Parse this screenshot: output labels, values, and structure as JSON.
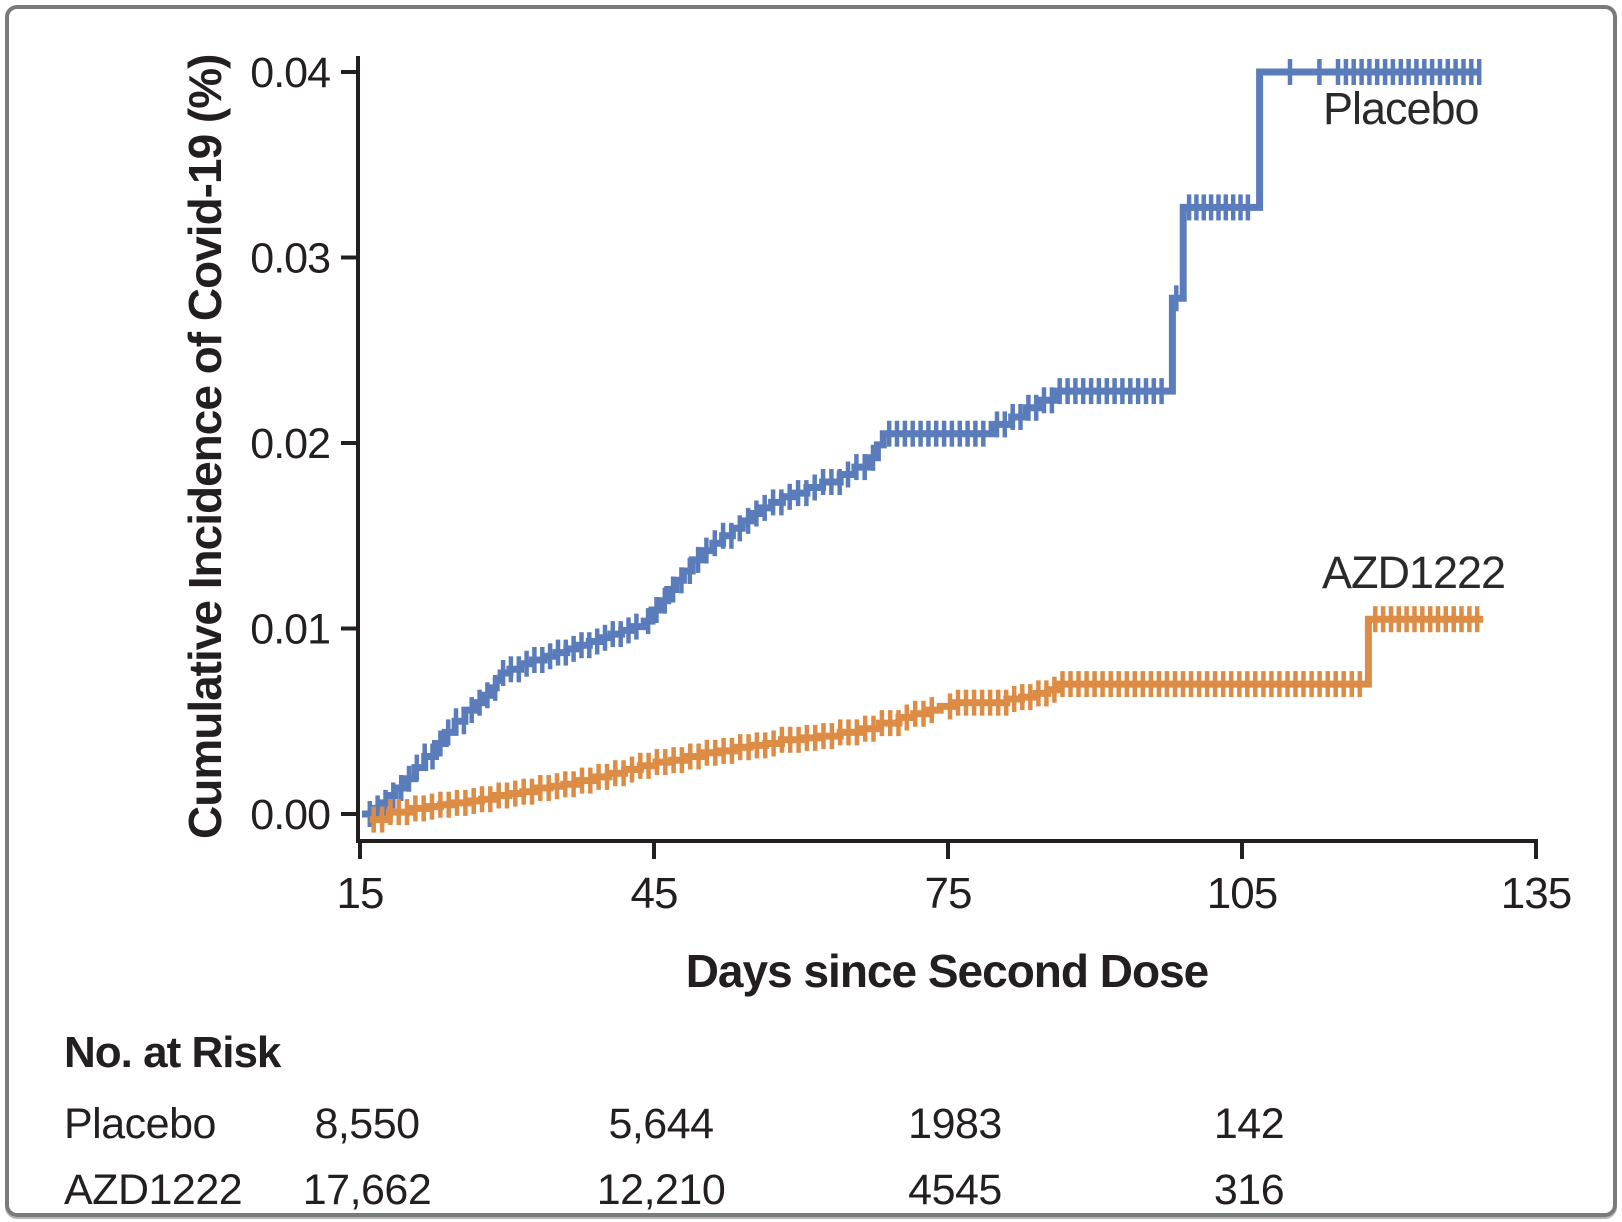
{
  "figure": {
    "background": "#ffffff",
    "border_color": "#787a7c",
    "ink_color": "#231f20"
  },
  "chart_data": {
    "type": "line",
    "subtype": "kaplan-meier-cumulative-incidence-steps",
    "title": "",
    "xlabel": "Days since Second Dose",
    "ylabel": "Cumulative Incidence of Covid-19 (%)",
    "xlim": [
      15,
      135
    ],
    "ylim": [
      0,
      0.04
    ],
    "x_ticks": [
      {
        "value": 15,
        "label": "15"
      },
      {
        "value": 45,
        "label": "45"
      },
      {
        "value": 75,
        "label": "75"
      },
      {
        "value": 105,
        "label": "105"
      },
      {
        "value": 135,
        "label": "135"
      }
    ],
    "y_ticks": [
      {
        "value": 0.04,
        "label": "0.04"
      },
      {
        "value": 0.03,
        "label": "0.03"
      },
      {
        "value": 0.02,
        "label": "0.02"
      },
      {
        "value": 0.01,
        "label": "0.01"
      },
      {
        "value": 0.0,
        "label": "0.00"
      }
    ],
    "grid": false,
    "legend_position": "inline-labels",
    "series": [
      {
        "name": "Placebo",
        "color": "#5b7cbb",
        "label_anchor": {
          "day": 121.2,
          "pct": 0.038
        },
        "end_day": 129.4,
        "steps": [
          [
            15.2,
            0.0
          ],
          [
            16.2,
            0.0003
          ],
          [
            17.0,
            0.0006
          ],
          [
            17.8,
            0.001
          ],
          [
            18.6,
            0.0014
          ],
          [
            19.6,
            0.0019
          ],
          [
            20.6,
            0.0025
          ],
          [
            21.6,
            0.0031
          ],
          [
            22.7,
            0.0038
          ],
          [
            23.7,
            0.0044
          ],
          [
            24.7,
            0.005
          ],
          [
            25.7,
            0.0056
          ],
          [
            26.7,
            0.006
          ],
          [
            27.6,
            0.0064
          ],
          [
            28.3,
            0.0068
          ],
          [
            28.9,
            0.0072
          ],
          [
            29.4,
            0.0076
          ],
          [
            30.3,
            0.0078
          ],
          [
            31.4,
            0.0081
          ],
          [
            32.6,
            0.0083
          ],
          [
            33.8,
            0.0085
          ],
          [
            35.0,
            0.0087
          ],
          [
            36.1,
            0.0089
          ],
          [
            37.2,
            0.0091
          ],
          [
            38.4,
            0.0093
          ],
          [
            39.5,
            0.0095
          ],
          [
            40.6,
            0.0097
          ],
          [
            41.7,
            0.0099
          ],
          [
            42.8,
            0.0101
          ],
          [
            44.0,
            0.0104
          ],
          [
            44.8,
            0.011
          ],
          [
            45.6,
            0.0115
          ],
          [
            46.4,
            0.0121
          ],
          [
            47.2,
            0.0126
          ],
          [
            48.0,
            0.0131
          ],
          [
            48.9,
            0.0137
          ],
          [
            50.0,
            0.0142
          ],
          [
            51.0,
            0.0146
          ],
          [
            52.0,
            0.015
          ],
          [
            53.0,
            0.0154
          ],
          [
            54.0,
            0.0158
          ],
          [
            55.0,
            0.0162
          ],
          [
            55.8,
            0.0165
          ],
          [
            57.0,
            0.0168
          ],
          [
            58.1,
            0.0171
          ],
          [
            59.2,
            0.0173
          ],
          [
            60.6,
            0.0176
          ],
          [
            62.2,
            0.0179
          ],
          [
            64.0,
            0.0183
          ],
          [
            65.5,
            0.0187
          ],
          [
            67.0,
            0.0192
          ],
          [
            67.8,
            0.0199
          ],
          [
            68.4,
            0.0205
          ],
          [
            79.5,
            0.021
          ],
          [
            81.5,
            0.0214
          ],
          [
            83.0,
            0.0219
          ],
          [
            84.5,
            0.0223
          ],
          [
            86.0,
            0.0228
          ],
          [
            97.9,
            0.0278
          ],
          [
            99.0,
            0.0327
          ],
          [
            106.8,
            0.04
          ]
        ],
        "censor_runs": [
          {
            "from": 16.0,
            "to": 43.6,
            "step": 0.8
          },
          {
            "from": 44.4,
            "to": 68.0,
            "step": 0.85
          },
          {
            "from": 69.0,
            "to": 78.8,
            "step": 0.8
          },
          {
            "from": 80.0,
            "to": 97.2,
            "step": 0.8
          },
          {
            "from": 98.3,
            "to": 98.3,
            "step": 1.0
          },
          {
            "from": 99.6,
            "to": 106.2,
            "step": 0.75
          },
          {
            "from": 109.9,
            "to": 112.9,
            "step": 3.0
          },
          {
            "from": 114.8,
            "to": 129.3,
            "step": 0.8
          }
        ]
      },
      {
        "name": "AZD1222",
        "color": "#dd8c45",
        "label_anchor": {
          "day": 122.5,
          "pct": 0.013
        },
        "end_day": 129.6,
        "steps": [
          [
            16.0,
            -0.0003
          ],
          [
            18.0,
            0.0001
          ],
          [
            20.3,
            0.0003
          ],
          [
            21.8,
            0.0004
          ],
          [
            23.2,
            0.0005
          ],
          [
            24.6,
            0.0006
          ],
          [
            26.0,
            0.0007
          ],
          [
            27.4,
            0.0008
          ],
          [
            28.8,
            0.001
          ],
          [
            30.2,
            0.0011
          ],
          [
            31.6,
            0.0012
          ],
          [
            33.0,
            0.0014
          ],
          [
            34.4,
            0.0015
          ],
          [
            35.8,
            0.0016
          ],
          [
            37.2,
            0.0018
          ],
          [
            38.8,
            0.002
          ],
          [
            40.4,
            0.0022
          ],
          [
            42.0,
            0.0024
          ],
          [
            43.6,
            0.0026
          ],
          [
            45.2,
            0.0028
          ],
          [
            46.8,
            0.0029
          ],
          [
            48.4,
            0.0031
          ],
          [
            50.0,
            0.0033
          ],
          [
            51.6,
            0.0034
          ],
          [
            53.2,
            0.0036
          ],
          [
            54.8,
            0.0037
          ],
          [
            56.4,
            0.0038
          ],
          [
            58.0,
            0.004
          ],
          [
            60.0,
            0.0041
          ],
          [
            62.0,
            0.0042
          ],
          [
            64.0,
            0.0044
          ],
          [
            66.0,
            0.0046
          ],
          [
            68.0,
            0.0049
          ],
          [
            70.0,
            0.0052
          ],
          [
            71.5,
            0.0054
          ],
          [
            73.0,
            0.0056
          ],
          [
            74.2,
            0.0058
          ],
          [
            75.5,
            0.006
          ],
          [
            81.0,
            0.0062
          ],
          [
            82.5,
            0.0063
          ],
          [
            84.0,
            0.0065
          ],
          [
            85.2,
            0.0067
          ],
          [
            86.2,
            0.007
          ],
          [
            117.9,
            0.0105
          ]
        ],
        "censor_runs": [
          {
            "from": 16.4,
            "to": 74.0,
            "step": 0.85
          },
          {
            "from": 75.2,
            "to": 117.2,
            "step": 0.82
          },
          {
            "from": 118.6,
            "to": 129.5,
            "step": 0.8
          }
        ]
      }
    ]
  },
  "risk_table": {
    "header": "No. at Risk",
    "columns_days": [
      15,
      45,
      75,
      105
    ],
    "rows": [
      {
        "label": "Placebo",
        "values": [
          "8,550",
          "5,644",
          "1983",
          "142"
        ]
      },
      {
        "label": "AZD1222",
        "values": [
          "17,662",
          "12,210",
          "4545",
          "316"
        ]
      }
    ]
  }
}
